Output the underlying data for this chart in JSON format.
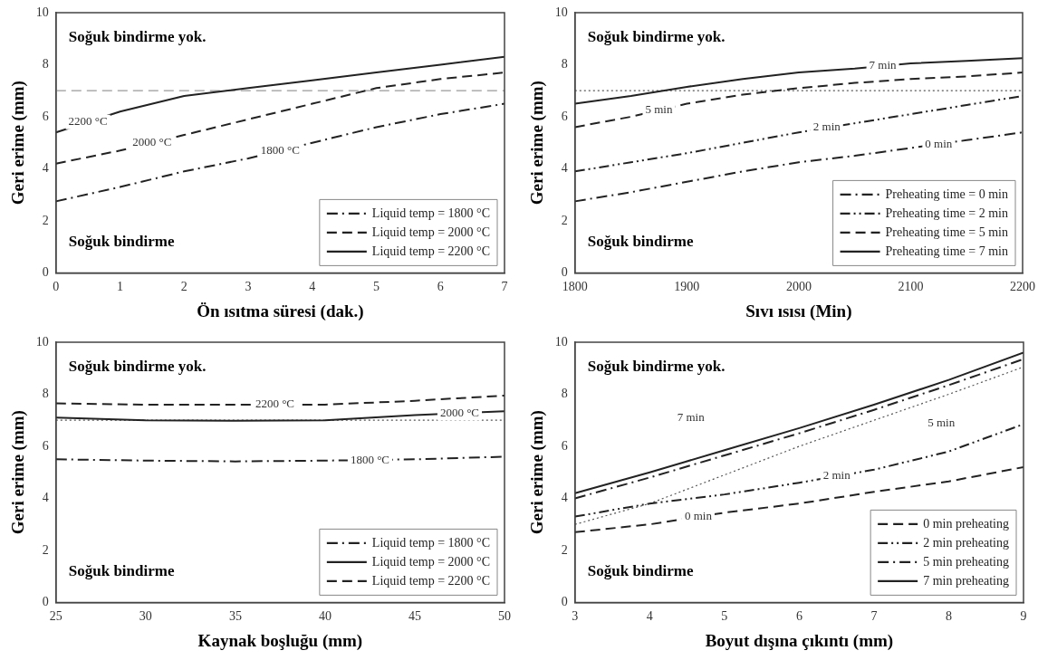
{
  "chart_data": [
    {
      "type": "line",
      "xlabel": "Ön ısıtma süresi (dak.)",
      "ylabel": "Geri erime (mm)",
      "x": [
        0,
        1,
        2,
        3,
        4,
        5,
        6,
        7
      ],
      "xlim": [
        0,
        7
      ],
      "xticks": [
        0,
        1,
        2,
        3,
        4,
        5,
        6,
        7
      ],
      "ylim": [
        0,
        10
      ],
      "yticks": [
        0,
        2,
        4,
        6,
        8,
        10
      ],
      "legend": "bottom right",
      "grid": false,
      "marker": "none",
      "series": [
        {
          "name": "Liquid temp = 1800 °C",
          "color": "#222222",
          "line_style": "dashdot",
          "values": [
            2.75,
            3.3,
            3.9,
            4.4,
            5.0,
            5.6,
            6.1,
            6.5
          ]
        },
        {
          "name": "Liquid temp = 2000 °C",
          "color": "#222222",
          "line_style": "dashed",
          "values": [
            4.2,
            4.7,
            5.3,
            5.9,
            6.5,
            7.1,
            7.45,
            7.7
          ]
        },
        {
          "name": "Liquid temp = 2200 °C",
          "color": "#222222",
          "line_style": "solid",
          "values": [
            5.4,
            6.2,
            6.8,
            7.1,
            7.4,
            7.7,
            8.0,
            8.3
          ]
        }
      ],
      "ref_lines": [
        {
          "axis": "y",
          "value": 7,
          "color": "#999999",
          "line_style": "dashed"
        }
      ],
      "annotations": [
        "Soğuk bindirme yok.",
        "Soğuk bindirme",
        {
          "text": "2200 °C",
          "x": 0.5,
          "y": 5.8
        },
        {
          "text": "2000 °C",
          "x": 1.5,
          "y": 5.0
        },
        {
          "text": "1800 °C",
          "x": 3.5,
          "y": 4.7
        }
      ]
    },
    {
      "type": "line",
      "xlabel": "Sıvı ısısı (Min)",
      "ylabel": "Geri erime (mm)",
      "x": [
        1800,
        1850,
        1900,
        1950,
        2000,
        2050,
        2100,
        2150,
        2200
      ],
      "xlim": [
        1800,
        2200
      ],
      "xticks": [
        1800,
        1900,
        2000,
        2100,
        2200
      ],
      "ylim": [
        0,
        10
      ],
      "yticks": [
        0,
        2,
        4,
        6,
        8,
        10
      ],
      "legend": "bottom right",
      "grid": false,
      "marker": "none",
      "series": [
        {
          "name": "Preheating time = 0 min",
          "color": "#222222",
          "line_style": "dashdot",
          "values": [
            2.75,
            3.1,
            3.5,
            3.9,
            4.25,
            4.5,
            4.8,
            5.1,
            5.4
          ]
        },
        {
          "name": "Preheating time = 2 min",
          "color": "#222222",
          "line_style": "dashdotdot",
          "values": [
            3.9,
            4.25,
            4.6,
            5.0,
            5.4,
            5.75,
            6.1,
            6.45,
            6.8
          ]
        },
        {
          "name": "Preheating time = 5 min",
          "color": "#222222",
          "line_style": "dashed",
          "values": [
            5.6,
            6.0,
            6.5,
            6.85,
            7.1,
            7.3,
            7.45,
            7.55,
            7.7
          ]
        },
        {
          "name": "Preheating time = 7 min",
          "color": "#222222",
          "line_style": "solid",
          "values": [
            6.5,
            6.8,
            7.15,
            7.45,
            7.7,
            7.85,
            8.05,
            8.15,
            8.25
          ]
        }
      ],
      "ref_lines": [
        {
          "axis": "y",
          "value": 7,
          "color": "#555555",
          "line_style": "dotted"
        }
      ],
      "annotations": [
        "Soğuk bindirme yok.",
        "Soğuk bindirme",
        {
          "text": "7 min",
          "x": 2075,
          "y": 7.95
        },
        {
          "text": "5 min",
          "x": 1875,
          "y": 6.25
        },
        {
          "text": "2 min",
          "x": 2025,
          "y": 5.58
        },
        {
          "text": "0 min",
          "x": 2125,
          "y": 4.95
        }
      ]
    },
    {
      "type": "line",
      "xlabel": "Kaynak boşluğu (mm)",
      "ylabel": "Geri erime (mm)",
      "x": [
        25,
        30,
        35,
        40,
        45,
        50
      ],
      "xlim": [
        25,
        50
      ],
      "xticks": [
        25,
        30,
        35,
        40,
        45,
        50
      ],
      "ylim": [
        0,
        10
      ],
      "yticks": [
        0,
        2,
        4,
        6,
        8,
        10
      ],
      "legend": "bottom right",
      "grid": false,
      "marker": "none",
      "series": [
        {
          "name": "Liquid temp = 1800 °C",
          "color": "#222222",
          "line_style": "dashdot",
          "values": [
            5.5,
            5.45,
            5.42,
            5.45,
            5.5,
            5.6
          ]
        },
        {
          "name": "Liquid temp = 2000 °C",
          "color": "#222222",
          "line_style": "solid",
          "values": [
            7.1,
            7.0,
            6.98,
            7.0,
            7.2,
            7.35
          ]
        },
        {
          "name": "Liquid temp = 2200 °C",
          "color": "#222222",
          "line_style": "dashed",
          "values": [
            7.65,
            7.6,
            7.6,
            7.6,
            7.75,
            7.95
          ]
        }
      ],
      "ref_lines": [
        {
          "axis": "y",
          "value": 7,
          "color": "#555555",
          "line_style": "dotted"
        }
      ],
      "annotations": [
        "Soğuk bindirme yok.",
        "Soğuk bindirme",
        {
          "text": "2200 °C",
          "x": 37.2,
          "y": 7.6
        },
        {
          "text": "2000 °C",
          "x": 47.5,
          "y": 7.27
        },
        {
          "text": "1800 °C",
          "x": 42.5,
          "y": 5.47
        }
      ]
    },
    {
      "type": "line",
      "xlabel": "Boyut dışına çıkıntı (mm)",
      "ylabel": "Geri erime (mm)",
      "x": [
        3,
        4,
        5,
        6,
        7,
        8,
        9
      ],
      "xlim": [
        3,
        9
      ],
      "xticks": [
        3,
        4,
        5,
        6,
        7,
        8,
        9
      ],
      "ylim": [
        0,
        10
      ],
      "yticks": [
        0,
        2,
        4,
        6,
        8,
        10
      ],
      "legend": "bottom right",
      "grid": false,
      "marker": "none",
      "series": [
        {
          "name": "0 min preheating",
          "color": "#222222",
          "line_style": "dashed",
          "values": [
            2.7,
            3.0,
            3.45,
            3.8,
            4.25,
            4.65,
            5.2
          ]
        },
        {
          "name": "2 min preheating",
          "color": "#222222",
          "line_style": "dashdotdot",
          "values": [
            3.3,
            3.8,
            4.15,
            4.6,
            5.1,
            5.8,
            6.85
          ]
        },
        {
          "name": "5 min preheating",
          "color": "#222222",
          "line_style": "dashdot",
          "values": [
            4.0,
            4.8,
            5.65,
            6.5,
            7.4,
            8.35,
            9.35
          ]
        },
        {
          "name": "7 min preheating",
          "color": "#222222",
          "line_style": "solid",
          "values": [
            4.2,
            5.0,
            5.85,
            6.7,
            7.6,
            8.55,
            9.6
          ]
        },
        {
          "color": "#555555",
          "line_style": "dotted",
          "values": [
            3.0,
            3.8,
            4.9,
            6.0,
            7.0,
            8.0,
            9.05
          ]
        }
      ],
      "annotations": [
        "Soğuk bindirme yok.",
        "Soğuk bindirme",
        {
          "text": "7 min",
          "x": 4.55,
          "y": 7.1
        },
        {
          "text": "5 min",
          "x": 7.9,
          "y": 6.9
        },
        {
          "text": "2 min",
          "x": 6.5,
          "y": 4.85
        },
        {
          "text": "0 min",
          "x": 4.65,
          "y": 3.3
        }
      ]
    }
  ]
}
